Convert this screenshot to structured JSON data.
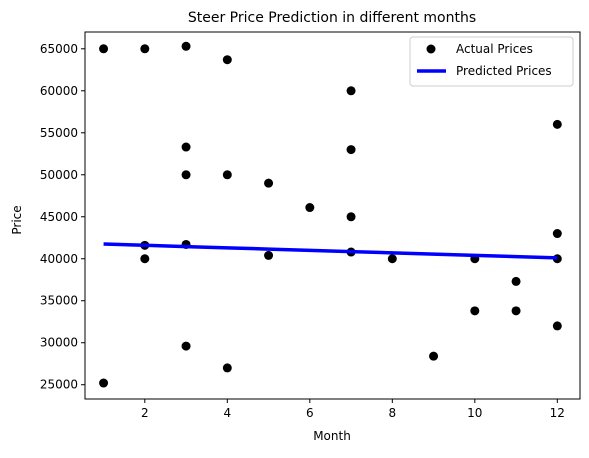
{
  "chart_data": {
    "type": "scatter",
    "title": "Steer Price Prediction in different months",
    "xlabel": "Month",
    "ylabel": "Price",
    "xlim": [
      0.55,
      12.55
    ],
    "ylim": [
      23300,
      67000
    ],
    "xticks": [
      2,
      4,
      6,
      8,
      10,
      12
    ],
    "yticks": [
      25000,
      30000,
      35000,
      40000,
      45000,
      50000,
      55000,
      60000,
      65000
    ],
    "grid": false,
    "legend_position": "upper right",
    "series": [
      {
        "name": "Actual Prices",
        "kind": "scatter",
        "color": "#000000",
        "points": [
          {
            "x": 1,
            "y": 65000
          },
          {
            "x": 1,
            "y": 25200
          },
          {
            "x": 2,
            "y": 65000
          },
          {
            "x": 2,
            "y": 41600
          },
          {
            "x": 2,
            "y": 40000
          },
          {
            "x": 3,
            "y": 65300
          },
          {
            "x": 3,
            "y": 53300
          },
          {
            "x": 3,
            "y": 50000
          },
          {
            "x": 3,
            "y": 41700
          },
          {
            "x": 3,
            "y": 29600
          },
          {
            "x": 4,
            "y": 63700
          },
          {
            "x": 4,
            "y": 50000
          },
          {
            "x": 4,
            "y": 27000
          },
          {
            "x": 5,
            "y": 49000
          },
          {
            "x": 5,
            "y": 40400
          },
          {
            "x": 6,
            "y": 46100
          },
          {
            "x": 7,
            "y": 60000
          },
          {
            "x": 7,
            "y": 53000
          },
          {
            "x": 7,
            "y": 45000
          },
          {
            "x": 7,
            "y": 40800
          },
          {
            "x": 8,
            "y": 40000
          },
          {
            "x": 9,
            "y": 28400
          },
          {
            "x": 10,
            "y": 40000
          },
          {
            "x": 10,
            "y": 33800
          },
          {
            "x": 11,
            "y": 37300
          },
          {
            "x": 11,
            "y": 33800
          },
          {
            "x": 12,
            "y": 56000
          },
          {
            "x": 12,
            "y": 43000
          },
          {
            "x": 12,
            "y": 40000
          },
          {
            "x": 12,
            "y": 32000
          }
        ]
      },
      {
        "name": "Predicted Prices",
        "kind": "line",
        "color": "#0000ff",
        "points": [
          {
            "x": 1,
            "y": 41750
          },
          {
            "x": 2,
            "y": 41600
          },
          {
            "x": 3,
            "y": 41450
          },
          {
            "x": 4,
            "y": 41300
          },
          {
            "x": 5,
            "y": 41150
          },
          {
            "x": 6,
            "y": 41000
          },
          {
            "x": 7,
            "y": 40850
          },
          {
            "x": 8,
            "y": 40700
          },
          {
            "x": 9,
            "y": 40550
          },
          {
            "x": 10,
            "y": 40400
          },
          {
            "x": 11,
            "y": 40250
          },
          {
            "x": 12,
            "y": 40100
          }
        ]
      }
    ]
  }
}
